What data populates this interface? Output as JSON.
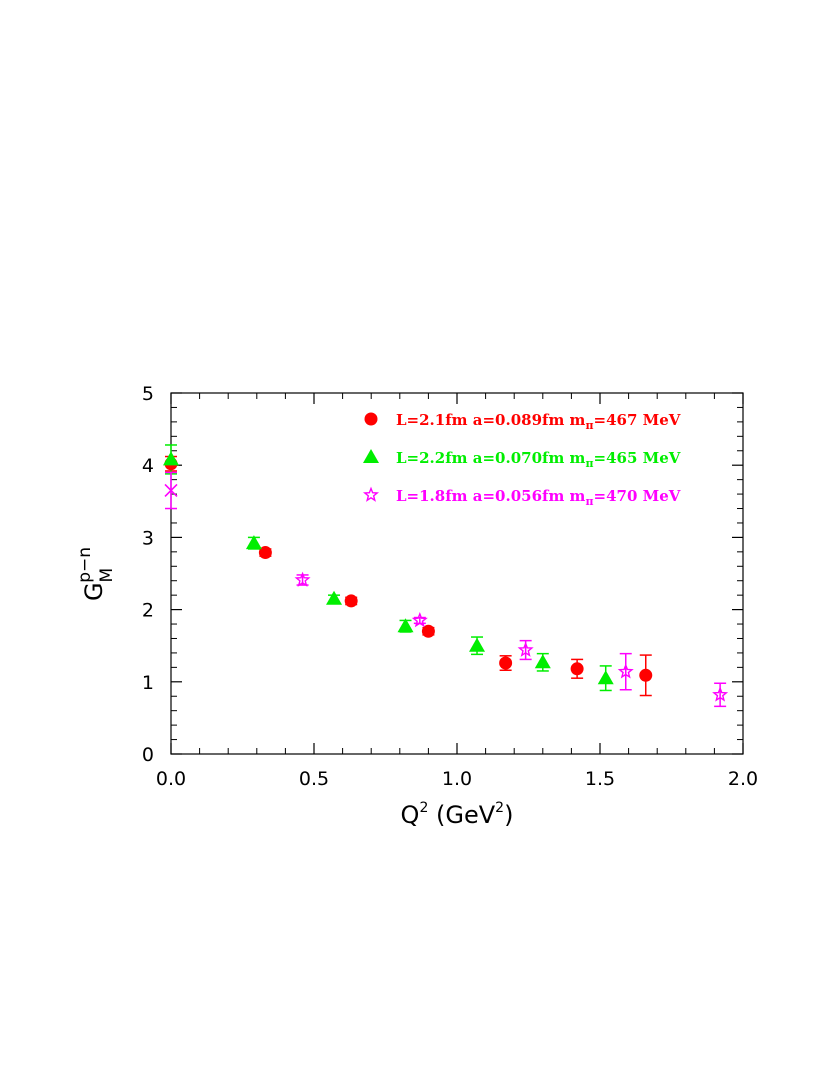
{
  "chart_data": {
    "type": "scatter",
    "title": "",
    "xlabel": {
      "base": "Q",
      "sup1": "2",
      "mid": " (GeV",
      "sup2": "2",
      "tail": ")"
    },
    "ylabel": {
      "base": "G",
      "sub": "M",
      "sup": "p−n"
    },
    "xlim": [
      0,
      2.0
    ],
    "ylim": [
      0,
      5
    ],
    "x_ticks": [
      "0.0",
      "0.5",
      "1.0",
      "1.5",
      "2.0"
    ],
    "y_ticks": [
      "0",
      "1",
      "2",
      "3",
      "4",
      "5"
    ],
    "grid": false,
    "legend_position": "top-right",
    "series": [
      {
        "name": {
          "pre": "L=2.1fm  a=0.089fm  m",
          "sub": "π",
          "post": "=467  MeV"
        },
        "color": "#ff0000",
        "marker": "circle",
        "points": [
          {
            "x": 0.0,
            "y": 4.02,
            "err": 0.1
          },
          {
            "x": 0.33,
            "y": 2.79,
            "err": 0.05
          },
          {
            "x": 0.63,
            "y": 2.12,
            "err": 0.05
          },
          {
            "x": 0.9,
            "y": 1.7,
            "err": 0.05
          },
          {
            "x": 1.17,
            "y": 1.26,
            "err": 0.1
          },
          {
            "x": 1.42,
            "y": 1.18,
            "err": 0.13
          },
          {
            "x": 1.66,
            "y": 1.09,
            "err": 0.28
          }
        ]
      },
      {
        "name": {
          "pre": "L=2.2fm  a=0.070fm  m",
          "sub": "π",
          "post": "=465  MeV"
        },
        "color": "#00ee00",
        "marker": "triangle",
        "points": [
          {
            "x": 0.0,
            "y": 4.08,
            "err": 0.2
          },
          {
            "x": 0.29,
            "y": 2.92,
            "err": 0.08
          },
          {
            "x": 0.57,
            "y": 2.15,
            "err": 0.05
          },
          {
            "x": 0.82,
            "y": 1.77,
            "err": 0.08
          },
          {
            "x": 1.07,
            "y": 1.5,
            "err": 0.12
          },
          {
            "x": 1.3,
            "y": 1.27,
            "err": 0.12
          },
          {
            "x": 1.52,
            "y": 1.05,
            "err": 0.17
          }
        ]
      },
      {
        "name": {
          "pre": "L=1.8fm  a=0.056fm  m",
          "sub": "π",
          "post": "=470  MeV"
        },
        "color": "#ff00ff",
        "marker": "star",
        "points": [
          {
            "x": 0.46,
            "y": 2.41,
            "err": 0.07
          },
          {
            "x": 0.87,
            "y": 1.85,
            "err": 0.04
          },
          {
            "x": 1.24,
            "y": 1.44,
            "err": 0.13
          },
          {
            "x": 1.59,
            "y": 1.14,
            "err": 0.25
          },
          {
            "x": 1.92,
            "y": 0.82,
            "err": 0.16
          }
        ]
      },
      {
        "name": "",
        "color": "#ff00ff",
        "marker": "cross",
        "points": [
          {
            "x": 0.0,
            "y": 3.65,
            "err": 0.25
          }
        ]
      }
    ]
  }
}
